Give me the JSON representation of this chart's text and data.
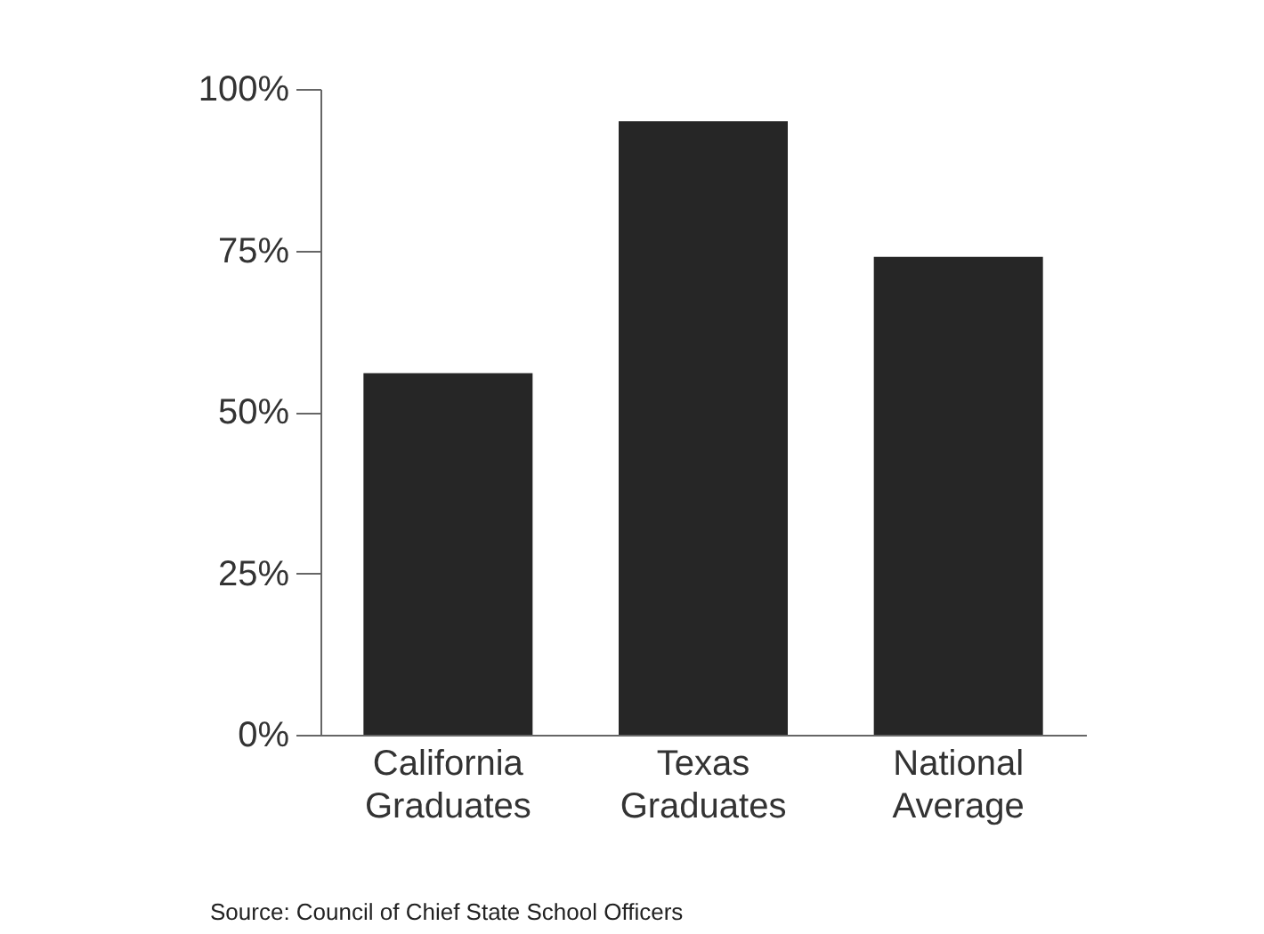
{
  "chart_data": {
    "type": "bar",
    "categories": [
      "California Graduates",
      "Texas Graduates",
      "National Average"
    ],
    "values": [
      56,
      95,
      74
    ],
    "color": "#262626",
    "ylim": [
      0,
      100
    ],
    "yticks": [
      {
        "value": 0,
        "label": "0%"
      },
      {
        "value": 25,
        "label": "25%"
      },
      {
        "value": 50,
        "label": "50%"
      },
      {
        "value": 75,
        "label": "75%"
      },
      {
        "value": 100,
        "label": "100%"
      }
    ],
    "grid": false,
    "annotations": [
      "Source: Council of Chief State School Officers"
    ]
  }
}
